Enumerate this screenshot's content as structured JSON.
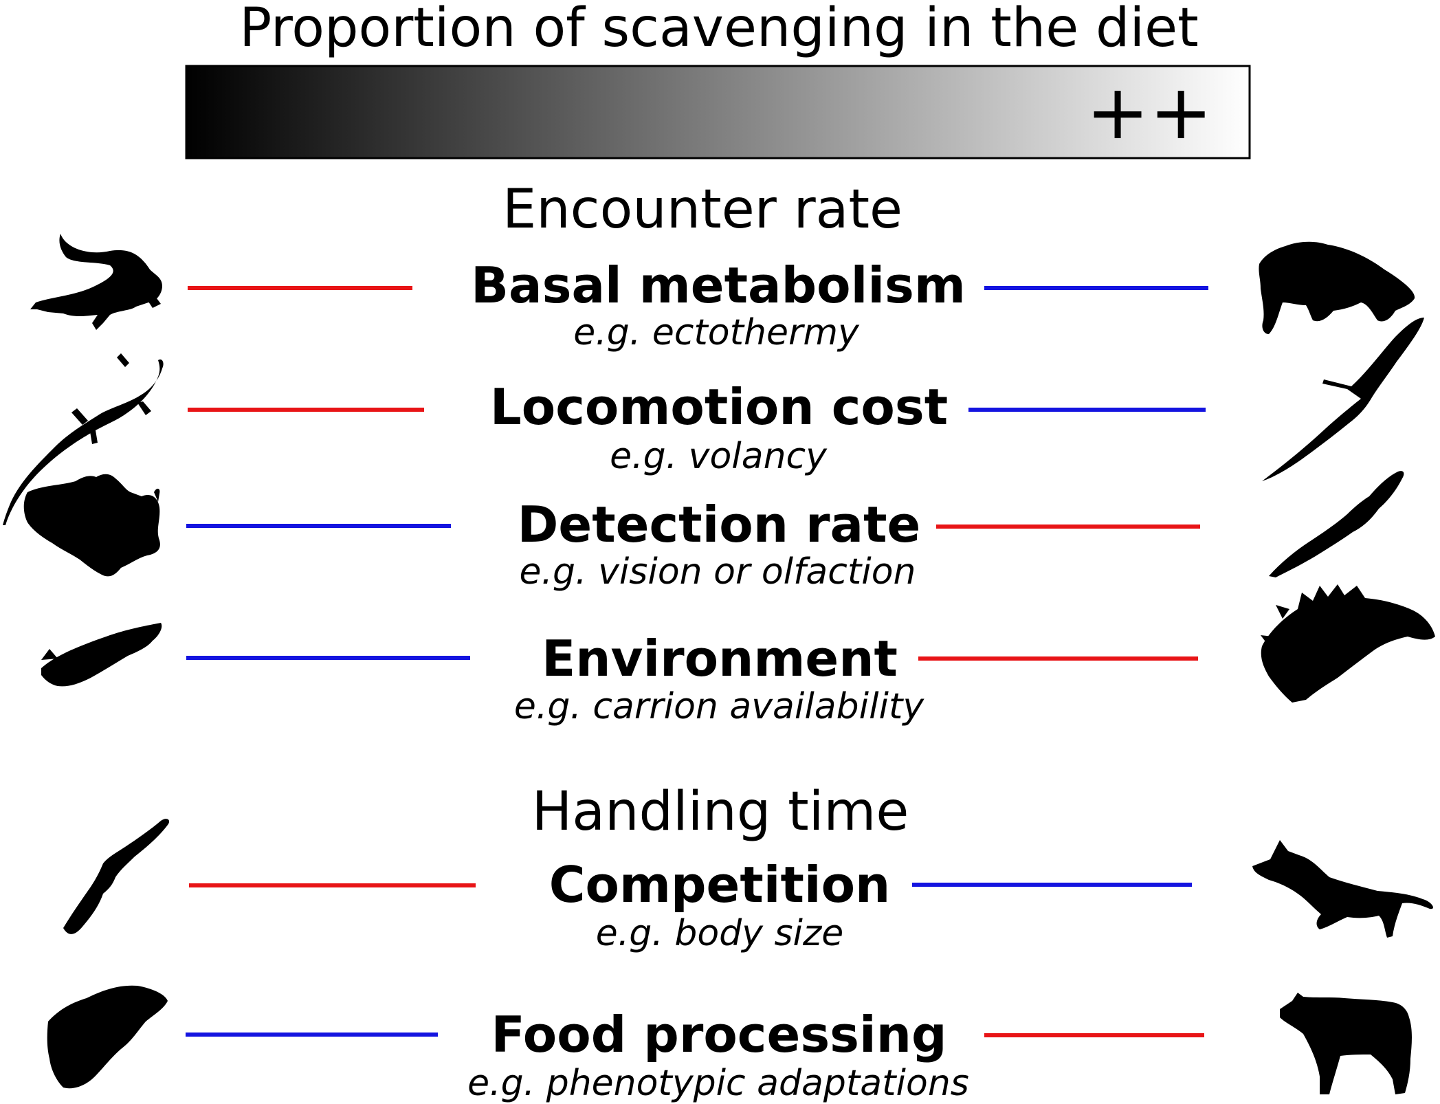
{
  "title": "Proportion of scavenging in the diet",
  "scale_marker": "++",
  "colors": {
    "positive": "#e81416",
    "negative": "#1414e0",
    "silhouette": "#000000"
  },
  "sections": [
    {
      "heading": "Encounter rate",
      "factors": [
        {
          "name": "Basal metabolism",
          "example": "e.g. ectothermy",
          "left_line": "red",
          "right_line": "blue",
          "left_icon": "monitor-lizard-icon",
          "right_icon": "bear-icon"
        },
        {
          "name": "Locomotion cost",
          "example": "e.g. volancy",
          "left_line": "red",
          "right_line": "blue",
          "left_icon": "lizard-icon",
          "right_icon": "albatross-icon"
        },
        {
          "name": "Detection rate",
          "example": "e.g. vision or olfaction",
          "left_line": "blue",
          "right_line": "red",
          "left_icon": "anglerfish-icon",
          "right_icon": "vulture-icon"
        },
        {
          "name": "Environment",
          "example": "e.g. carrion availability",
          "left_line": "blue",
          "right_line": "red",
          "left_icon": "fossil-fish-icon",
          "right_icon": "stegosaurus-skeleton-icon"
        }
      ]
    },
    {
      "heading": "Handling time",
      "factors": [
        {
          "name": "Competition",
          "example": "e.g. body size",
          "left_line": "red",
          "right_line": "blue",
          "left_icon": "eagle-icon",
          "right_icon": "jackal-icon"
        },
        {
          "name": "Food processing",
          "example": "e.g. phenotypic adaptations",
          "left_line": "blue",
          "right_line": "red",
          "left_icon": "flatfish-icon",
          "right_icon": "hyena-icon"
        }
      ]
    }
  ]
}
